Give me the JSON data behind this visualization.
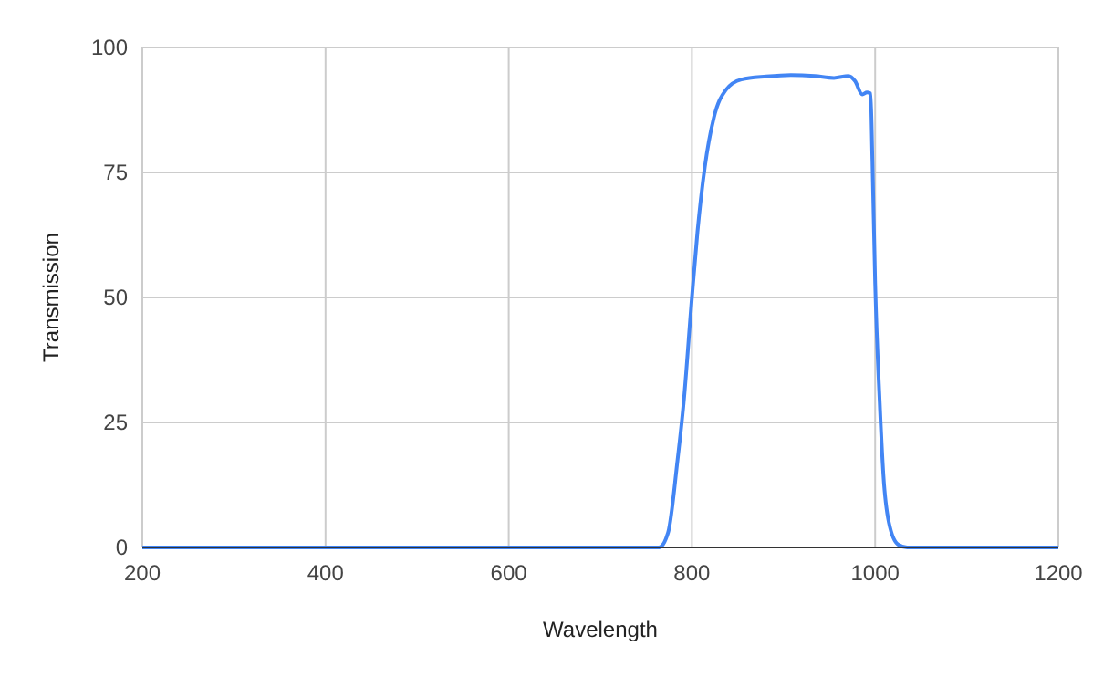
{
  "chart_data": {
    "type": "line",
    "xlabel": "Wavelength",
    "ylabel": "Transmission",
    "xlim": [
      200,
      1200
    ],
    "xticks": [
      200,
      400,
      600,
      800,
      1000,
      1200
    ],
    "ylim": [
      0,
      100
    ],
    "yticks": [
      0,
      25,
      50,
      75,
      100
    ],
    "grid": true,
    "marker": "none",
    "line_style": "solid",
    "series": [
      {
        "color": "#4285f4",
        "x": [
          200,
          500,
          750,
          764,
          774,
          784,
          791,
          800,
          806,
          814,
          824,
          837,
          854,
          881,
          908,
          934,
          955,
          971,
          978,
          986,
          991,
          995,
          997,
          1000,
          1005,
          1009,
          1015,
          1025,
          1035,
          1100,
          1200
        ],
        "values": [
          0,
          0,
          0,
          0,
          3,
          17,
          29,
          50,
          63,
          76,
          86,
          91.5,
          93.6,
          94.2,
          94.5,
          94.3,
          93.9,
          94.3,
          93.3,
          90.6,
          91,
          90.8,
          77.6,
          53,
          29,
          14.5,
          5,
          0.6,
          0,
          0,
          0
        ]
      }
    ]
  }
}
